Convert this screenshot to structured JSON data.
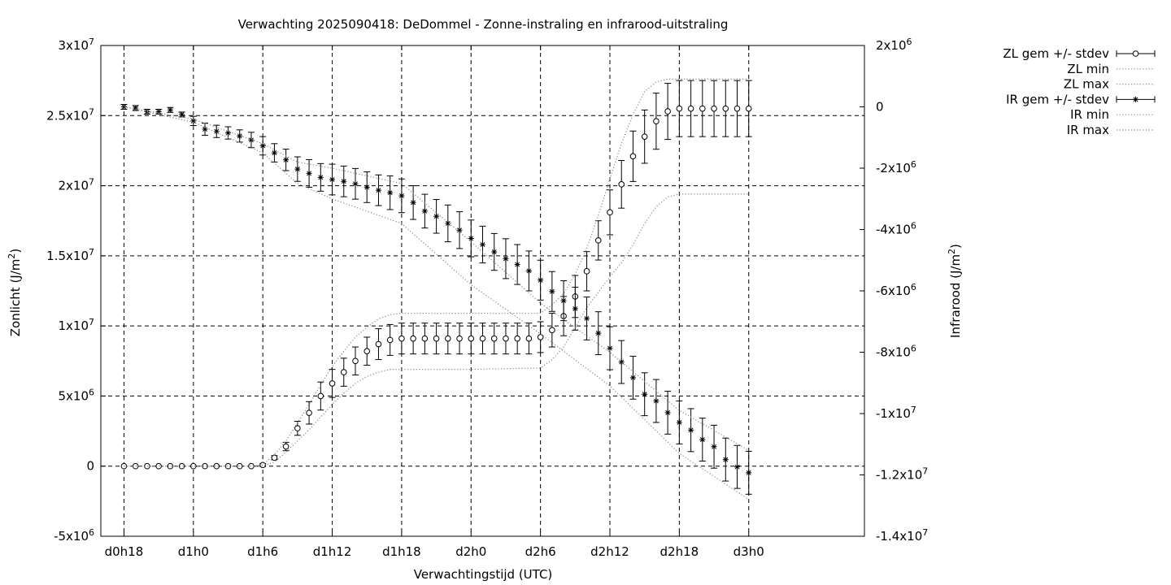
{
  "chart_data": {
    "type": "line",
    "title": "Verwachting 2025090418: DeDommel - Zonne-instraling en infrarood-uitstraling",
    "xlabel": "Verwachtingstijd (UTC)",
    "ylabel_left": "Zonlicht (J/m2)",
    "ylabel_right": "Infrarood (J/m2)",
    "x_unit": "hours since d0h0",
    "xlim": [
      16,
      82
    ],
    "ylim_left": [
      -5000000,
      30000000
    ],
    "ylim_right": [
      -14000000,
      2000000
    ],
    "grid": true,
    "legend_position": "outside-right-top",
    "x_ticks": [
      {
        "x": 18,
        "label": "d0h18"
      },
      {
        "x": 24,
        "label": "d1h0"
      },
      {
        "x": 30,
        "label": "d1h6"
      },
      {
        "x": 36,
        "label": "d1h12"
      },
      {
        "x": 42,
        "label": "d1h18"
      },
      {
        "x": 48,
        "label": "d2h0"
      },
      {
        "x": 54,
        "label": "d2h6"
      },
      {
        "x": 60,
        "label": "d2h12"
      },
      {
        "x": 66,
        "label": "d2h18"
      },
      {
        "x": 72,
        "label": "d3h0"
      }
    ],
    "y_ticks_left": [
      {
        "v": -5000000,
        "m": "-5",
        "e": "6"
      },
      {
        "v": 0,
        "m": "0",
        "e": ""
      },
      {
        "v": 5000000,
        "m": "5",
        "e": "6"
      },
      {
        "v": 10000000,
        "m": "1",
        "e": "7"
      },
      {
        "v": 15000000,
        "m": "1.5",
        "e": "7"
      },
      {
        "v": 20000000,
        "m": "2",
        "e": "7"
      },
      {
        "v": 25000000,
        "m": "2.5",
        "e": "7"
      },
      {
        "v": 30000000,
        "m": "3",
        "e": "7"
      }
    ],
    "y_ticks_right": [
      {
        "v": 2000000,
        "m": "2",
        "e": "6"
      },
      {
        "v": 0,
        "m": "0",
        "e": ""
      },
      {
        "v": -2000000,
        "m": "-2",
        "e": "6"
      },
      {
        "v": -4000000,
        "m": "-4",
        "e": "6"
      },
      {
        "v": -6000000,
        "m": "-6",
        "e": "6"
      },
      {
        "v": -8000000,
        "m": "-8",
        "e": "6"
      },
      {
        "v": -10000000,
        "m": "-1",
        "e": "7"
      },
      {
        "v": -12000000,
        "m": "-1.2",
        "e": "7"
      },
      {
        "v": -14000000,
        "m": "-1.4",
        "e": "7"
      }
    ],
    "series": [
      {
        "name": "ZL gem +/- stdev",
        "axis": "left",
        "style": "errorbars-circle",
        "x": [
          18,
          19,
          20,
          21,
          22,
          23,
          24,
          25,
          26,
          27,
          28,
          29,
          30,
          31,
          32,
          33,
          34,
          35,
          36,
          37,
          38,
          39,
          40,
          41,
          42,
          43,
          44,
          45,
          46,
          47,
          48,
          49,
          50,
          51,
          52,
          53,
          54,
          55,
          56,
          57,
          58,
          59,
          60,
          61,
          62,
          63,
          64,
          65,
          66,
          67,
          68,
          69,
          70,
          71,
          72
        ],
        "values": [
          0,
          0,
          0,
          0,
          0,
          0,
          0,
          0,
          0,
          0,
          0,
          0,
          80000,
          600000,
          1400000,
          2700000,
          3800000,
          5000000,
          5900000,
          6700000,
          7500000,
          8200000,
          8700000,
          9000000,
          9100000,
          9100000,
          9100000,
          9100000,
          9100000,
          9100000,
          9100000,
          9100000,
          9100000,
          9100000,
          9100000,
          9100000,
          9200000,
          9700000,
          10700000,
          12100000,
          13900000,
          16100000,
          18100000,
          20100000,
          22100000,
          23500000,
          24600000,
          25300000,
          25500000,
          25500000,
          25500000,
          25500000,
          25500000,
          25500000,
          25500000
        ],
        "stdev": [
          0,
          0,
          0,
          0,
          0,
          0,
          0,
          0,
          0,
          0,
          0,
          0,
          100000,
          150000,
          300000,
          500000,
          800000,
          1000000,
          1000000,
          1000000,
          1000000,
          1000000,
          1100000,
          1100000,
          1100000,
          1100000,
          1100000,
          1100000,
          1100000,
          1100000,
          1100000,
          1100000,
          1100000,
          1100000,
          1100000,
          1100000,
          1100000,
          1200000,
          1400000,
          1500000,
          1400000,
          1400000,
          1600000,
          1700000,
          1800000,
          1900000,
          2000000,
          2000000,
          2000000,
          2000000,
          2000000,
          2000000,
          2000000,
          2000000,
          2000000
        ]
      },
      {
        "name": "ZL min",
        "axis": "left",
        "style": "dotted",
        "x": [
          18,
          29,
          30,
          31,
          32,
          33,
          34,
          35,
          36,
          37,
          38,
          39,
          40,
          41,
          42,
          48,
          54,
          55,
          56,
          57,
          58,
          59,
          60,
          61,
          62,
          63,
          64,
          65,
          66,
          72
        ],
        "values": [
          0,
          0,
          0,
          300000,
          1000000,
          1800000,
          2600000,
          3500000,
          4400000,
          5200000,
          5900000,
          6400000,
          6700000,
          6900000,
          6900000,
          6900000,
          7000000,
          7600000,
          8500000,
          9900000,
          11300000,
          12400000,
          13500000,
          14500000,
          15800000,
          17300000,
          18500000,
          19200000,
          19400000,
          19400000
        ]
      },
      {
        "name": "ZL max",
        "axis": "left",
        "style": "dotted",
        "x": [
          18,
          29,
          30,
          31,
          32,
          33,
          34,
          35,
          36,
          37,
          38,
          39,
          40,
          41,
          42,
          48,
          54,
          55,
          56,
          57,
          58,
          59,
          60,
          61,
          62,
          63,
          64,
          65,
          66,
          72
        ],
        "values": [
          0,
          0,
          100000,
          800000,
          1800000,
          3100000,
          4400000,
          5800000,
          7100000,
          8200000,
          9200000,
          9900000,
          10500000,
          10800000,
          10900000,
          10900000,
          10900000,
          11500000,
          12300000,
          13700000,
          15500000,
          17900000,
          20500000,
          23000000,
          25100000,
          26700000,
          27400000,
          27600000,
          27600000,
          27600000
        ]
      },
      {
        "name": "IR gem +/- stdev",
        "axis": "right",
        "style": "errorbars-star",
        "x": [
          18,
          19,
          20,
          21,
          22,
          23,
          24,
          25,
          26,
          27,
          28,
          29,
          30,
          31,
          32,
          33,
          34,
          35,
          36,
          37,
          38,
          39,
          40,
          41,
          42,
          43,
          44,
          45,
          46,
          47,
          48,
          49,
          50,
          51,
          52,
          53,
          54,
          55,
          56,
          57,
          58,
          59,
          60,
          61,
          62,
          63,
          64,
          65,
          66,
          67,
          68,
          69,
          70,
          71,
          72
        ],
        "values": [
          0,
          -40000,
          -160000,
          -160000,
          -100000,
          -250000,
          -460000,
          -730000,
          -800000,
          -850000,
          -950000,
          -1080000,
          -1270000,
          -1500000,
          -1730000,
          -2030000,
          -2170000,
          -2300000,
          -2370000,
          -2430000,
          -2510000,
          -2620000,
          -2720000,
          -2800000,
          -2900000,
          -3120000,
          -3400000,
          -3570000,
          -3800000,
          -4020000,
          -4290000,
          -4490000,
          -4730000,
          -4950000,
          -5140000,
          -5350000,
          -5650000,
          -6020000,
          -6320000,
          -6580000,
          -6900000,
          -7380000,
          -7870000,
          -8320000,
          -8830000,
          -9370000,
          -9590000,
          -9970000,
          -10290000,
          -10540000,
          -10850000,
          -11080000,
          -11500000,
          -11740000,
          -11930000
        ],
        "stdev": [
          80000,
          80000,
          80000,
          80000,
          80000,
          80000,
          150000,
          200000,
          200000,
          200000,
          200000,
          250000,
          300000,
          300000,
          350000,
          400000,
          450000,
          450000,
          500000,
          500000,
          500000,
          500000,
          500000,
          550000,
          550000,
          550000,
          550000,
          550000,
          600000,
          600000,
          600000,
          600000,
          600000,
          650000,
          650000,
          650000,
          650000,
          650000,
          650000,
          700000,
          700000,
          700000,
          700000,
          700000,
          700000,
          700000,
          700000,
          700000,
          700000,
          700000,
          700000,
          700000,
          700000,
          700000,
          700000
        ]
      },
      {
        "name": "IR min",
        "axis": "right",
        "style": "dotted",
        "x": [
          18,
          24,
          30,
          33,
          36,
          42,
          48,
          54,
          60,
          66,
          72
        ],
        "values": [
          0,
          -500000,
          -1500000,
          -2500000,
          -3000000,
          -3800000,
          -5800000,
          -7400000,
          -9100000,
          -11300000,
          -12800000
        ]
      },
      {
        "name": "IR max",
        "axis": "right",
        "style": "dotted",
        "x": [
          18,
          24,
          30,
          33,
          36,
          42,
          48,
          54,
          60,
          66,
          72
        ],
        "values": [
          0,
          -400000,
          -1200000,
          -1800000,
          -2000000,
          -2500000,
          -4400000,
          -6400000,
          -8000000,
          -9900000,
          -11200000
        ]
      }
    ]
  }
}
